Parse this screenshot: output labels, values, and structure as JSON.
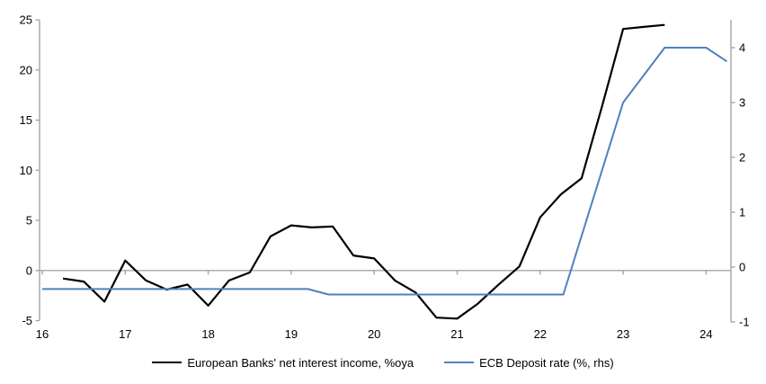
{
  "chart_data": {
    "type": "line",
    "title": "",
    "legend_position": "bottom",
    "grid": "zero-line-only",
    "x_axis": {
      "tick_labels": [
        "16",
        "17",
        "18",
        "19",
        "20",
        "21",
        "22",
        "23",
        "24"
      ],
      "tick_years": [
        2016,
        2017,
        2018,
        2019,
        2020,
        2021,
        2022,
        2023,
        2024
      ],
      "range": [
        2015.97,
        2024.3
      ]
    },
    "left_axis": {
      "ticks": [
        25,
        20,
        15,
        10,
        5,
        0,
        -5
      ],
      "range": [
        -5,
        25
      ],
      "zero_gridline": true
    },
    "right_axis": {
      "ticks": [
        4,
        3,
        2,
        1,
        0,
        -1
      ],
      "range": [
        -1,
        4.5
      ]
    },
    "series": [
      {
        "name": "European Banks' net interest income, %oya",
        "axis": "left",
        "color": "#000000",
        "x": [
          2016.25,
          2016.5,
          2016.75,
          2017.0,
          2017.25,
          2017.5,
          2017.75,
          2018.0,
          2018.25,
          2018.5,
          2018.75,
          2019.0,
          2019.25,
          2019.5,
          2019.75,
          2020.0,
          2020.25,
          2020.5,
          2020.75,
          2021.0,
          2021.25,
          2021.5,
          2021.75,
          2022.0,
          2022.25,
          2022.5,
          2022.75,
          2023.0,
          2023.25,
          2023.5
        ],
        "values": [
          -0.8,
          -1.1,
          -3.1,
          1.0,
          -1.0,
          -1.9,
          -1.4,
          -3.5,
          -1.0,
          -0.2,
          3.4,
          4.5,
          4.3,
          4.4,
          1.5,
          1.2,
          -1.0,
          -2.2,
          -4.7,
          -4.8,
          -3.3,
          -1.4,
          0.4,
          5.3,
          7.6,
          9.2,
          16.5,
          24.1,
          24.3,
          24.5
        ]
      },
      {
        "name": "ECB Deposit rate (%, rhs)",
        "axis": "right",
        "color": "#4f81bd",
        "x": [
          2016.0,
          2019.2,
          2019.45,
          2022.28,
          2023.0,
          2023.5,
          2024.0,
          2024.25
        ],
        "values": [
          -0.4,
          -0.4,
          -0.5,
          -0.5,
          3.0,
          4.0,
          4.0,
          3.75
        ]
      }
    ]
  },
  "colors": {
    "axis": "#a6a6a6",
    "text": "#000000",
    "background": "#ffffff"
  }
}
